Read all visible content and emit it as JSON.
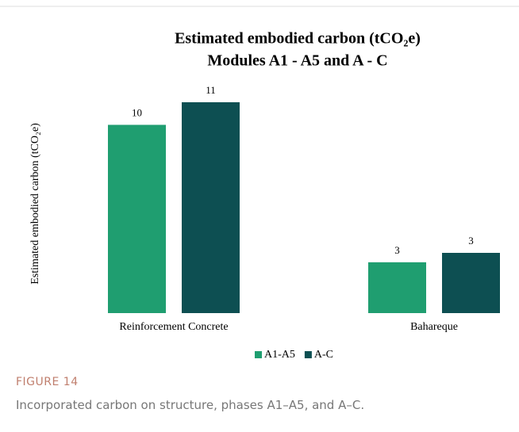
{
  "chart_data": {
    "type": "bar",
    "title": [
      "Estimated embodied carbon (tCO₂e)",
      "Modules A1 - A5 and A - C"
    ],
    "ylabel": "Estimated embodied carbon (tCO₂e)",
    "categories": [
      "Reinforcement Concrete",
      "Bahareque"
    ],
    "series": [
      {
        "name": "A1-A5",
        "color": "#1f9e70",
        "values": [
          10,
          2.7
        ],
        "value_labels": [
          "10",
          "3"
        ]
      },
      {
        "name": "A-C",
        "color": "#0d4f52",
        "values": [
          11.2,
          3.2
        ],
        "value_labels": [
          "11",
          "3"
        ]
      }
    ],
    "legend": "bottom",
    "grid": false
  },
  "caption": {
    "label": "FIGURE 14",
    "text": "Incorporated carbon on structure, phases A1–A5, and A–C."
  }
}
